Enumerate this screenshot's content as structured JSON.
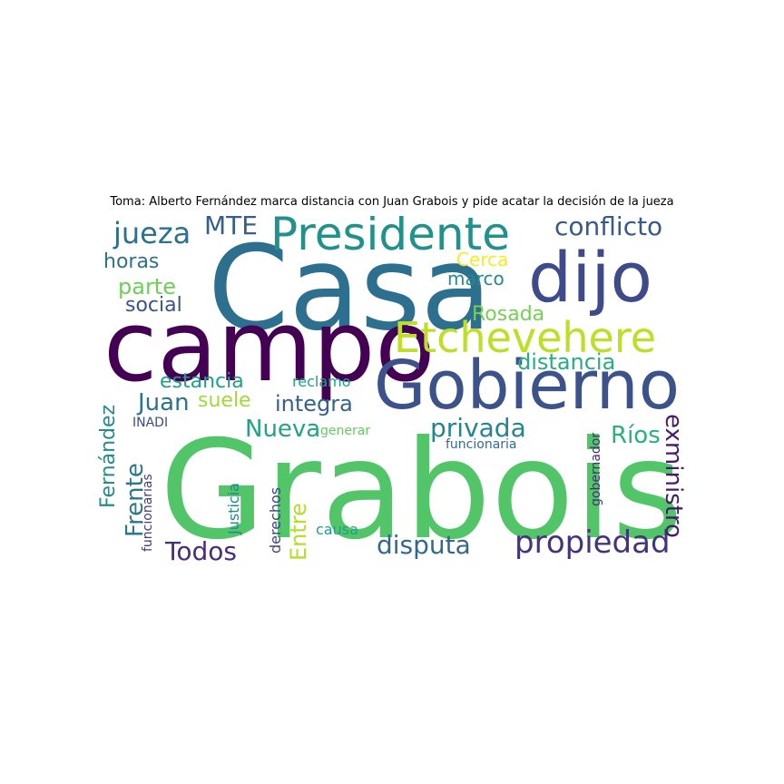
{
  "title": "Toma: Alberto Fernández marca distancia con Juan Grabois y pide acatar la decisión de la jueza",
  "words": [
    {
      "text": "Grabois",
      "color": "#52c569"
    },
    {
      "text": "Casa",
      "color": "#2d6f8e"
    },
    {
      "text": "campo",
      "color": "#440154"
    },
    {
      "text": "dijo",
      "color": "#3e4a89"
    },
    {
      "text": "Gobierno",
      "color": "#3b528b"
    },
    {
      "text": "Presidente",
      "color": "#21918c"
    },
    {
      "text": "Etchevehere",
      "color": "#bddf26"
    },
    {
      "text": "conflicto",
      "color": "#38598c"
    },
    {
      "text": "propiedad",
      "color": "#46337e"
    },
    {
      "text": "jueza",
      "color": "#2c728e"
    },
    {
      "text": "MTE",
      "color": "#355f8d"
    },
    {
      "text": "disputa",
      "color": "#31688e"
    },
    {
      "text": "privada",
      "color": "#25858e"
    },
    {
      "text": "Nueva",
      "color": "#20a386"
    },
    {
      "text": "Ríos",
      "color": "#2ab07f"
    },
    {
      "text": "exministro",
      "color": "#481a6c"
    },
    {
      "text": "Todos",
      "color": "#472d7b"
    },
    {
      "text": "integra",
      "color": "#33638d"
    },
    {
      "text": "estancia",
      "color": "#1fa088"
    },
    {
      "text": "distancia",
      "color": "#27ad81"
    },
    {
      "text": "Juan",
      "color": "#2c728e"
    },
    {
      "text": "suele",
      "color": "#a0da39"
    },
    {
      "text": "Rosada",
      "color": "#75d054"
    },
    {
      "text": "Cerca",
      "color": "#fde725"
    },
    {
      "text": "marco",
      "color": "#238a8d"
    },
    {
      "text": "horas",
      "color": "#2c728e"
    },
    {
      "text": "parte",
      "color": "#6ece58"
    },
    {
      "text": "social",
      "color": "#3b528b"
    },
    {
      "text": "Frente",
      "color": "#2a788e"
    },
    {
      "text": "Fernández",
      "color": "#228c8d"
    },
    {
      "text": "Entre",
      "color": "#b5de2b"
    },
    {
      "text": "reclamo",
      "color": "#1fa187"
    },
    {
      "text": "generar",
      "color": "#63cb5f"
    },
    {
      "text": "INADI",
      "color": "#3e4989"
    },
    {
      "text": "funcionaria",
      "color": "#2e6e8e"
    },
    {
      "text": "funcionarias",
      "color": "#443a83"
    },
    {
      "text": "Justicia",
      "color": "#23898e"
    },
    {
      "text": "derechos",
      "color": "#414487"
    },
    {
      "text": "causa",
      "color": "#1f9e89"
    },
    {
      "text": "gobernador",
      "color": "#472c7a"
    }
  ]
}
